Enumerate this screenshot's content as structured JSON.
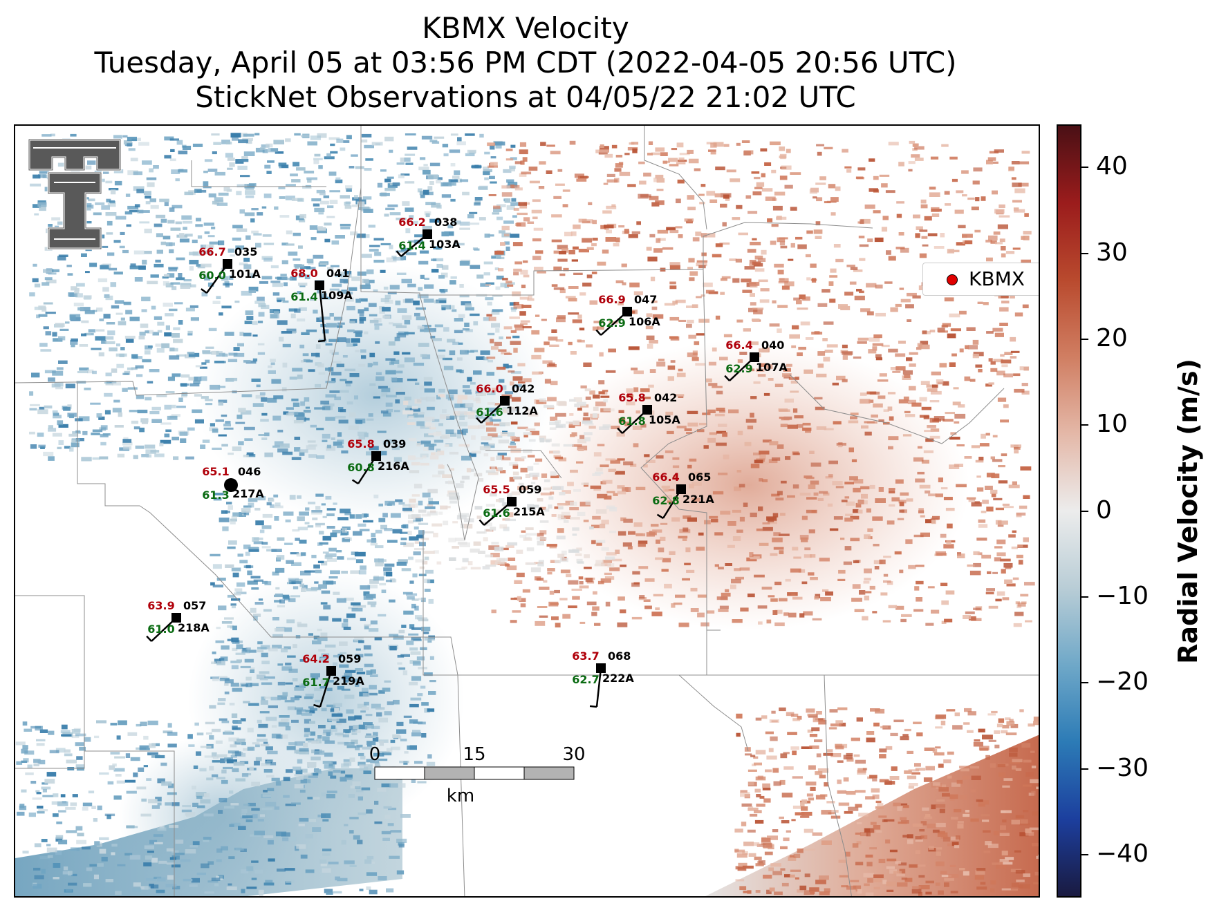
{
  "title": {
    "line1": "KBMX Velocity",
    "line2": "Tuesday, April 05 at 03:56 PM CDT (2022-04-05 20:56 UTC)",
    "line3": "StickNet Observations at 04/05/22 21:02 UTC"
  },
  "legend": {
    "label": "KBMX",
    "marker_color": "#e00000"
  },
  "colorbar": {
    "label": "Radial Velocity (m/s)",
    "range": [
      -45,
      45
    ],
    "ticks": [
      "40",
      "30",
      "20",
      "10",
      "0",
      "−10",
      "−20",
      "−30",
      "−40"
    ],
    "tick_values": [
      40,
      30,
      20,
      10,
      0,
      -10,
      -20,
      -30,
      -40
    ],
    "colors": [
      "#1a1a40",
      "#1c3f9e",
      "#2c7bb6",
      "#6fa8c8",
      "#b9cdd6",
      "#ececec",
      "#e4b8a8",
      "#d07e62",
      "#b94a2e",
      "#9b1c1c",
      "#4a1015"
    ]
  },
  "scalebar": {
    "ticks": [
      "0",
      "15",
      "30"
    ],
    "unit": "km"
  },
  "logo": "texas-tech-double-t-logo",
  "stations": [
    {
      "id": "101A",
      "temp": "66.7",
      "dew": "60.0",
      "dir": "035"
    },
    {
      "id": "109A",
      "temp": "68.0",
      "dew": "61.4",
      "dir": "041"
    },
    {
      "id": "103A",
      "temp": "66.2",
      "dew": "61.4",
      "dir": "038"
    },
    {
      "id": "106A",
      "temp": "66.9",
      "dew": "62.9",
      "dir": "047"
    },
    {
      "id": "107A",
      "temp": "66.4",
      "dew": "62.9",
      "dir": "040"
    },
    {
      "id": "112A",
      "temp": "66.0",
      "dew": "61.6",
      "dir": "042"
    },
    {
      "id": "105A",
      "temp": "65.8",
      "dew": "61.8",
      "dir": "042"
    },
    {
      "id": "216A",
      "temp": "65.8",
      "dew": "60.8",
      "dir": "039"
    },
    {
      "id": "217A",
      "temp": "65.1",
      "dew": "61.3",
      "dir": "046"
    },
    {
      "id": "215A",
      "temp": "65.5",
      "dew": "61.6",
      "dir": "059"
    },
    {
      "id": "221A",
      "temp": "66.4",
      "dew": "62.8",
      "dir": "065"
    },
    {
      "id": "218A",
      "temp": "63.9",
      "dew": "61.0",
      "dir": "057"
    },
    {
      "id": "219A",
      "temp": "64.2",
      "dew": "61.7",
      "dir": "059"
    },
    {
      "id": "222A",
      "temp": "63.7",
      "dew": "62.7",
      "dir": "068"
    }
  ]
}
